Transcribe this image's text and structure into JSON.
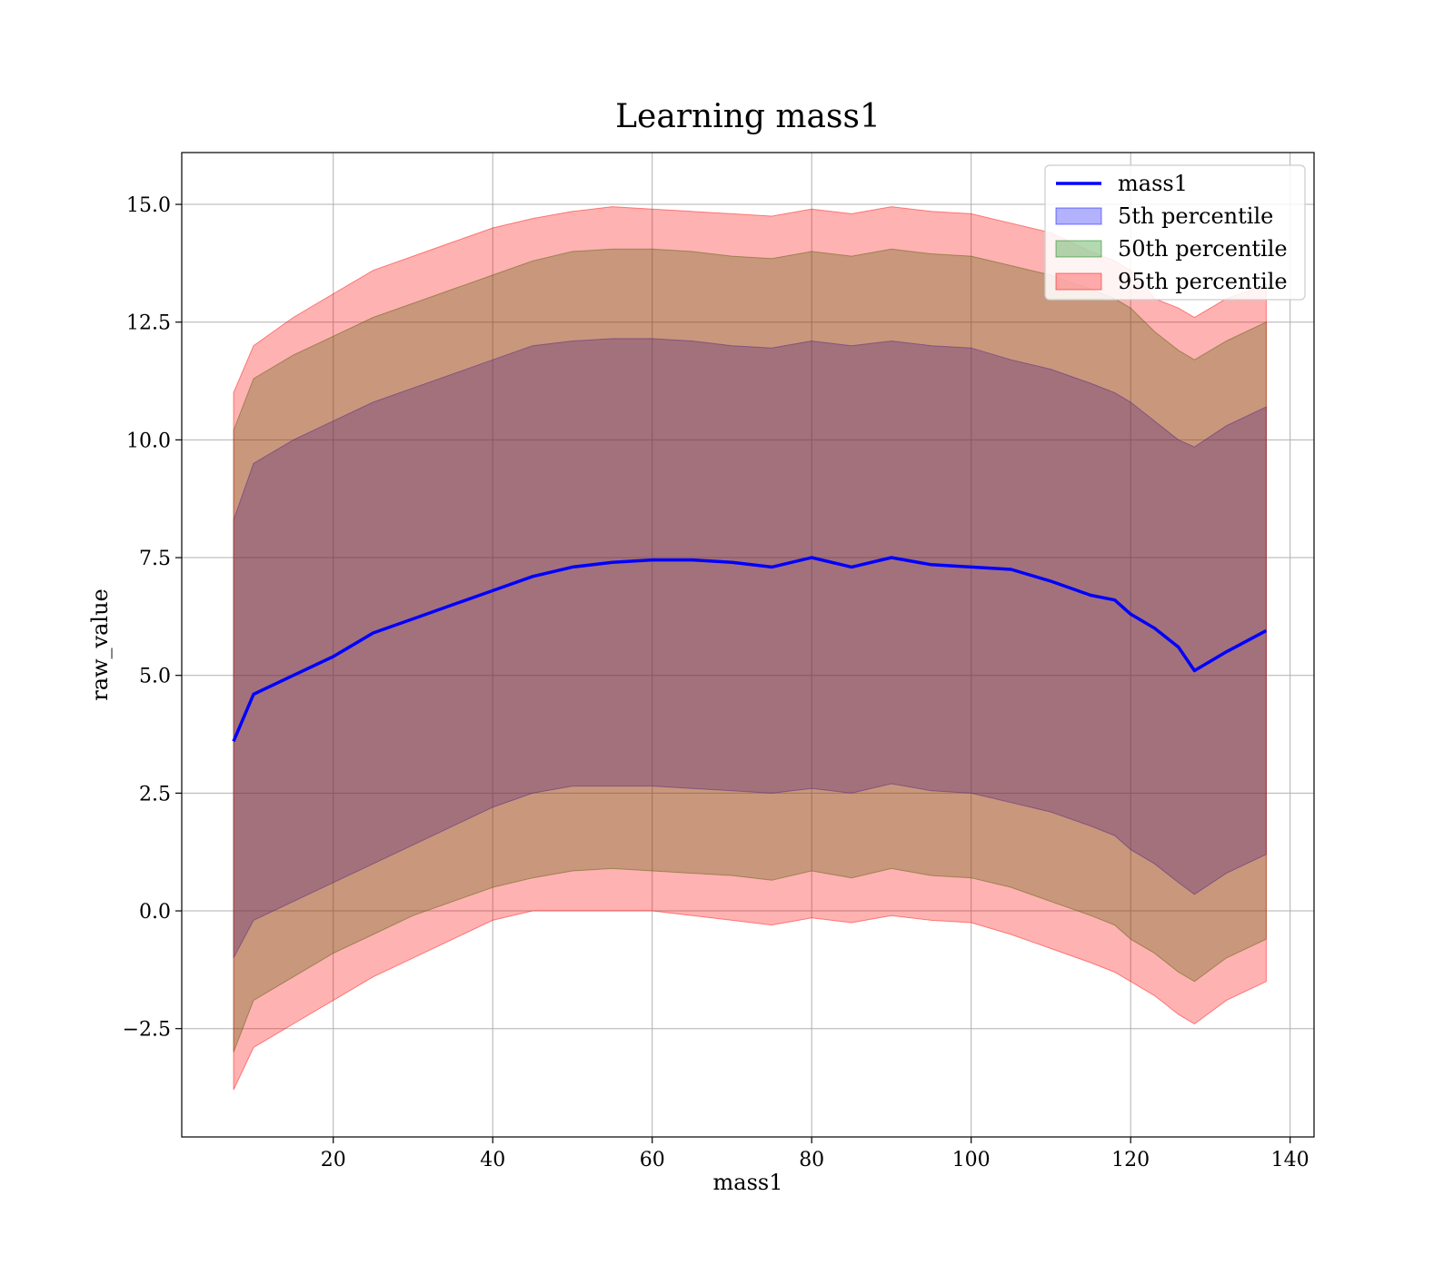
{
  "chart_data": {
    "type": "area",
    "title": "Learning mass1",
    "xlabel": "mass1",
    "ylabel": "raw_value",
    "xlim": [
      1,
      143
    ],
    "ylim": [
      -4.8,
      16.1
    ],
    "x_ticks": [
      20,
      40,
      60,
      80,
      100,
      120,
      140
    ],
    "x_tick_labels": [
      "20",
      "40",
      "60",
      "80",
      "100",
      "120",
      "140"
    ],
    "y_ticks": [
      -2.5,
      0.0,
      2.5,
      5.0,
      7.5,
      10.0,
      12.5,
      15.0
    ],
    "y_tick_labels": [
      "−2.5",
      "0.0",
      "2.5",
      "5.0",
      "7.5",
      "10.0",
      "12.5",
      "15.0"
    ],
    "grid": true,
    "legend_position": "top-right",
    "colors": {
      "line": "#0000ff",
      "band_5": "#0000ff",
      "band_50": "#008000",
      "band_95": "#ff0000"
    },
    "x": [
      7.5,
      10,
      15,
      20,
      25,
      30,
      35,
      40,
      45,
      50,
      55,
      60,
      65,
      70,
      75,
      80,
      85,
      90,
      95,
      100,
      105,
      110,
      115,
      118,
      120,
      123,
      126,
      128,
      132,
      137
    ],
    "series": [
      {
        "name": "mass1",
        "kind": "line",
        "values": [
          3.6,
          4.6,
          5.0,
          5.4,
          5.9,
          6.2,
          6.5,
          6.8,
          7.1,
          7.3,
          7.4,
          7.45,
          7.45,
          7.4,
          7.3,
          7.5,
          7.3,
          7.5,
          7.35,
          7.3,
          7.25,
          7.0,
          6.7,
          6.6,
          6.3,
          6.0,
          5.6,
          5.1,
          5.5,
          5.95
        ]
      },
      {
        "name": "5th percentile",
        "kind": "band",
        "lower": [
          -1.0,
          -0.2,
          0.2,
          0.6,
          1.0,
          1.4,
          1.8,
          2.2,
          2.5,
          2.65,
          2.65,
          2.65,
          2.6,
          2.55,
          2.5,
          2.6,
          2.5,
          2.7,
          2.55,
          2.5,
          2.3,
          2.1,
          1.8,
          1.6,
          1.3,
          1.0,
          0.6,
          0.35,
          0.8,
          1.2
        ],
        "upper": [
          8.3,
          9.5,
          10.0,
          10.4,
          10.8,
          11.1,
          11.4,
          11.7,
          12.0,
          12.1,
          12.15,
          12.15,
          12.1,
          12.0,
          11.95,
          12.1,
          12.0,
          12.1,
          12.0,
          11.95,
          11.7,
          11.5,
          11.2,
          11.0,
          10.8,
          10.4,
          10.0,
          9.85,
          10.3,
          10.7
        ]
      },
      {
        "name": "50th percentile",
        "kind": "band",
        "lower": [
          -3.0,
          -1.9,
          -1.4,
          -0.9,
          -0.5,
          -0.1,
          0.2,
          0.5,
          0.7,
          0.85,
          0.9,
          0.85,
          0.8,
          0.75,
          0.65,
          0.85,
          0.7,
          0.9,
          0.75,
          0.7,
          0.5,
          0.2,
          -0.1,
          -0.3,
          -0.6,
          -0.9,
          -1.3,
          -1.5,
          -1.0,
          -0.6
        ],
        "upper": [
          10.2,
          11.3,
          11.8,
          12.2,
          12.6,
          12.9,
          13.2,
          13.5,
          13.8,
          14.0,
          14.05,
          14.05,
          14.0,
          13.9,
          13.85,
          14.0,
          13.9,
          14.05,
          13.95,
          13.9,
          13.7,
          13.5,
          13.2,
          13.0,
          12.8,
          12.3,
          11.9,
          11.7,
          12.1,
          12.5
        ]
      },
      {
        "name": "95th percentile",
        "kind": "band",
        "lower": [
          -3.8,
          -2.9,
          -2.4,
          -1.9,
          -1.4,
          -1.0,
          -0.6,
          -0.2,
          0.0,
          0.0,
          0.0,
          0.0,
          -0.1,
          -0.2,
          -0.3,
          -0.15,
          -0.25,
          -0.1,
          -0.2,
          -0.25,
          -0.5,
          -0.8,
          -1.1,
          -1.3,
          -1.5,
          -1.8,
          -2.2,
          -2.4,
          -1.9,
          -1.5
        ],
        "upper": [
          11.0,
          12.0,
          12.6,
          13.1,
          13.6,
          13.9,
          14.2,
          14.5,
          14.7,
          14.85,
          14.95,
          14.9,
          14.85,
          14.8,
          14.75,
          14.9,
          14.8,
          14.95,
          14.85,
          14.8,
          14.6,
          14.4,
          14.0,
          13.8,
          13.6,
          13.0,
          12.8,
          12.6,
          13.0,
          13.3
        ]
      }
    ]
  }
}
